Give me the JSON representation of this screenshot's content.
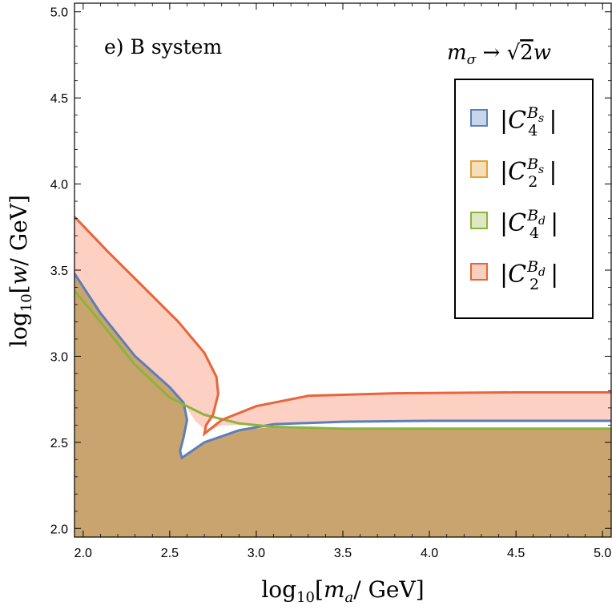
{
  "chart_data": {
    "type": "area",
    "annotation": "e) B system",
    "annotation_right": "m_σ → √2 w",
    "xlabel": "log10[m_a/ GeV]",
    "ylabel": "log10[w/ GeV]",
    "xlim": [
      1.95,
      5.05
    ],
    "ylim": [
      1.95,
      5.05
    ],
    "xticks": [
      "2.0",
      "2.5",
      "3.0",
      "3.5",
      "4.0",
      "4.5",
      "5.0"
    ],
    "yticks": [
      "2.0",
      "2.5",
      "3.0",
      "3.5",
      "4.0",
      "4.5",
      "5.0"
    ],
    "legend_position": "top-right",
    "legend": [
      {
        "base": "C",
        "sub": "4",
        "sup": "B",
        "supsub": "s",
        "color": "#5b7fb8",
        "fill": "#c9d5ea"
      },
      {
        "base": "C",
        "sub": "2",
        "sup": "B",
        "supsub": "s",
        "color": "#e6a033",
        "fill": "#f5dfb8"
      },
      {
        "base": "C",
        "sub": "4",
        "sup": "B",
        "supsub": "d",
        "color": "#8db33a",
        "fill": "#dfe8c4"
      },
      {
        "base": "C",
        "sub": "2",
        "sup": "B",
        "supsub": "d",
        "color": "#e8653a",
        "fill": "#f9cfc0"
      }
    ],
    "series": [
      {
        "name": "|C4^Bs|",
        "color": "#5b7fb8",
        "points": [
          [
            1.95,
            3.48
          ],
          [
            2.1,
            3.25
          ],
          [
            2.3,
            3.0
          ],
          [
            2.5,
            2.82
          ],
          [
            2.58,
            2.73
          ],
          [
            2.6,
            2.63
          ],
          [
            2.58,
            2.53
          ],
          [
            2.56,
            2.45
          ],
          [
            2.57,
            2.41
          ],
          [
            2.7,
            2.5
          ],
          [
            2.9,
            2.57
          ],
          [
            3.1,
            2.605
          ],
          [
            3.5,
            2.62
          ],
          [
            4.0,
            2.625
          ],
          [
            5.05,
            2.625
          ]
        ]
      },
      {
        "name": "|C4^Bd|",
        "color": "#8db33a",
        "points": [
          [
            1.95,
            3.38
          ],
          [
            2.1,
            3.2
          ],
          [
            2.3,
            2.95
          ],
          [
            2.5,
            2.76
          ],
          [
            2.7,
            2.66
          ],
          [
            2.9,
            2.61
          ],
          [
            3.1,
            2.59
          ],
          [
            3.5,
            2.58
          ],
          [
            4.0,
            2.58
          ],
          [
            5.05,
            2.58
          ]
        ]
      },
      {
        "name": "|C2^Bd|",
        "color": "#e8653a",
        "points": [
          [
            1.95,
            3.81
          ],
          [
            2.15,
            3.6
          ],
          [
            2.35,
            3.4
          ],
          [
            2.55,
            3.2
          ],
          [
            2.7,
            3.02
          ],
          [
            2.77,
            2.88
          ],
          [
            2.78,
            2.78
          ],
          [
            2.75,
            2.66
          ],
          [
            2.71,
            2.6
          ],
          [
            2.7,
            2.55
          ],
          [
            2.8,
            2.63
          ],
          [
            3.0,
            2.71
          ],
          [
            3.3,
            2.77
          ],
          [
            3.8,
            2.785
          ],
          [
            4.5,
            2.79
          ],
          [
            5.05,
            2.79
          ]
        ]
      }
    ]
  }
}
